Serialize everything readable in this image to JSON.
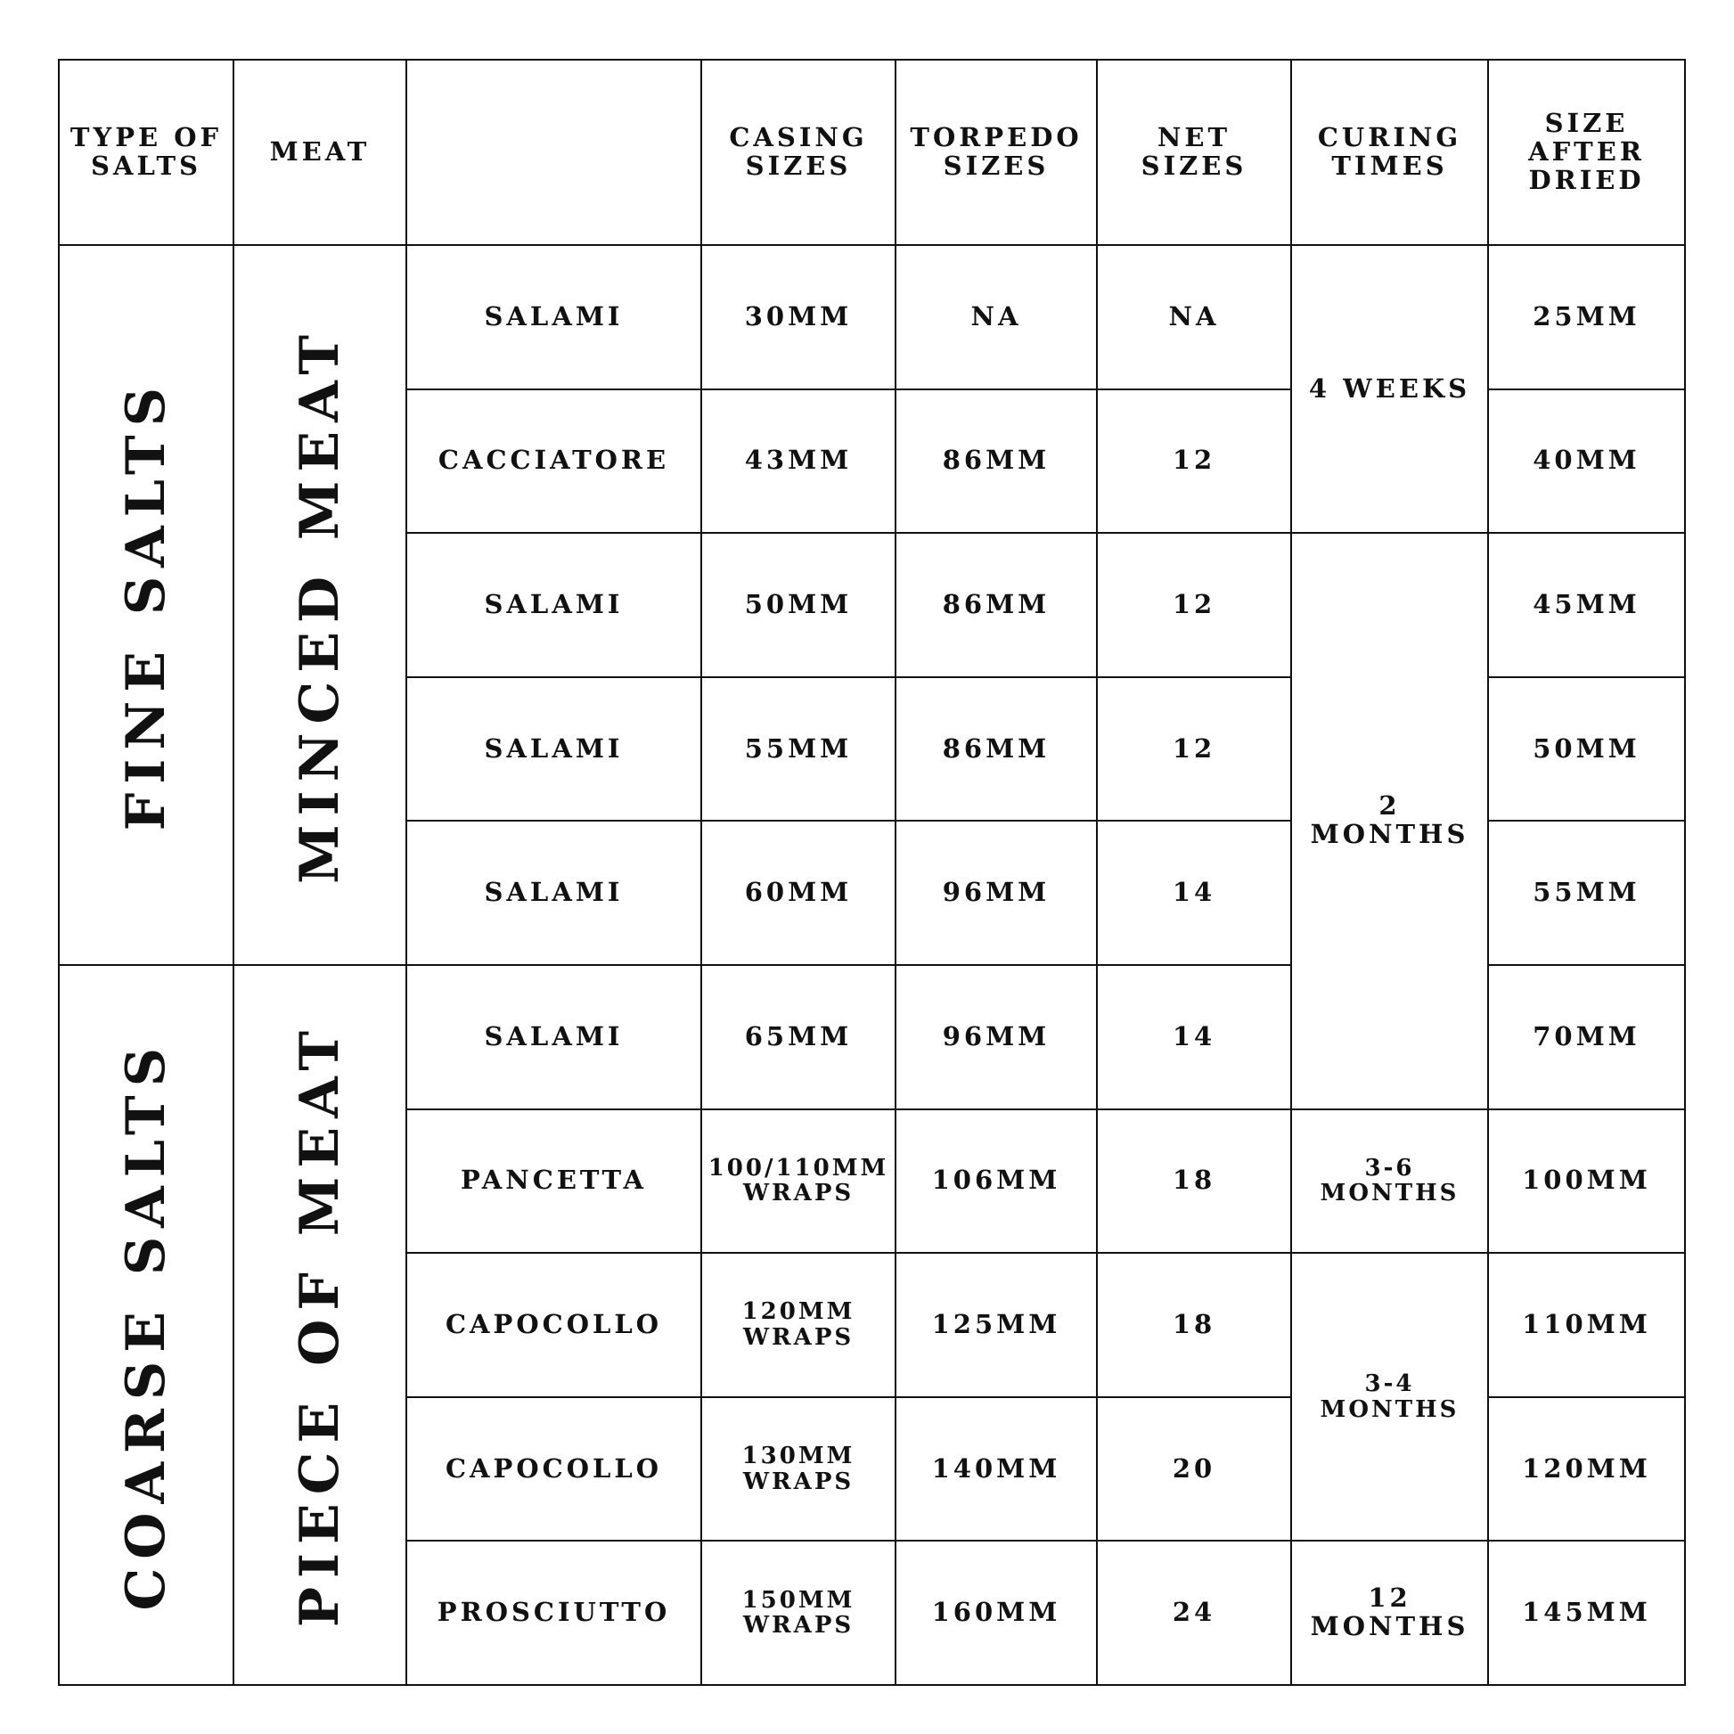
{
  "headers": [
    "TYPE OF SALTS",
    "MEAT",
    "",
    "CASING SIZES",
    "TORPEDO SIZES",
    "NET SIZES",
    "CURING TIMES",
    "SIZE AFTER DRIED"
  ],
  "salt_groups": [
    {
      "label": "FINE SALTS",
      "rows": 5
    },
    {
      "label": "COARSE SALTS",
      "rows": 5
    }
  ],
  "meat_groups": [
    {
      "label": "MINCED MEAT",
      "rows": 5
    },
    {
      "label": "PIECE OF MEAT",
      "rows": 5
    }
  ],
  "curing_groups": [
    {
      "label": "4 WEEKS",
      "rows": 2
    },
    {
      "label": "2 MONTHS",
      "rows": 4
    },
    {
      "label": "3-6 MONTHS",
      "rows": 1
    },
    {
      "label": "3-4 MONTHS",
      "rows": 2
    },
    {
      "label": "12 MONTHS",
      "rows": 1
    }
  ],
  "rows": [
    {
      "product": "SALAMI",
      "casing": "30MM",
      "torpedo": "NA",
      "net": "NA",
      "dried": "25MM"
    },
    {
      "product": "CACCIATORE",
      "casing": "43MM",
      "torpedo": "86MM",
      "net": "12",
      "dried": "40MM"
    },
    {
      "product": "SALAMI",
      "casing": "50MM",
      "torpedo": "86MM",
      "net": "12",
      "dried": "45MM"
    },
    {
      "product": "SALAMI",
      "casing": "55MM",
      "torpedo": "86MM",
      "net": "12",
      "dried": "50MM"
    },
    {
      "product": "SALAMI",
      "casing": "60MM",
      "torpedo": "96MM",
      "net": "14",
      "dried": "55MM"
    },
    {
      "product": "SALAMI",
      "casing": "65MM",
      "torpedo": "96MM",
      "net": "14",
      "dried": "70MM"
    },
    {
      "product": "PANCETTA",
      "casing": "100/110MM WRAPS",
      "torpedo": "106MM",
      "net": "18",
      "dried": "100MM"
    },
    {
      "product": "CAPOCOLLO",
      "casing": "120MM WRAPS",
      "torpedo": "125MM",
      "net": "18",
      "dried": "110MM"
    },
    {
      "product": "CAPOCOLLO",
      "casing": "130MM WRAPS",
      "torpedo": "140MM",
      "net": "20",
      "dried": "120MM"
    },
    {
      "product": "PROSCIUTTO",
      "casing": "150MM WRAPS",
      "torpedo": "160MM",
      "net": "24",
      "dried": "145MM"
    }
  ]
}
